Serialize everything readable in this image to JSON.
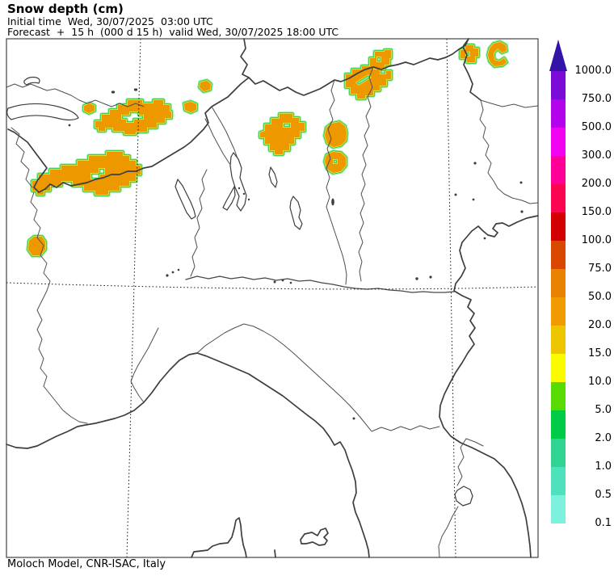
{
  "header": {
    "title": "Snow depth (cm)",
    "initial_time_line": "Initial time  Wed, 30/07/2025  03:00 UTC",
    "forecast_line": "Forecast  +  15 h  (000 d 15 h)  valid Wed, 30/07/2025 18:00 UTC"
  },
  "footer": {
    "credit": "Moloch Model, CNR-ISAC, Italy"
  },
  "legend": {
    "unit": "cm",
    "boundary_labels": [
      "1000.0",
      "750.0",
      "500.0",
      "300.0",
      "200.0",
      "150.0",
      "100.0",
      "75.0",
      "50.0",
      "20.0",
      "15.0",
      "10.0",
      "5.0",
      "2.0",
      "1.0",
      "0.5",
      "0.1"
    ],
    "segment_colors": [
      "#7C0BD8",
      "#B303EC",
      "#F203F2",
      "#FE0097",
      "#FB0551",
      "#D20000",
      "#D94700",
      "#E88200",
      "#F09C00",
      "#EDC600",
      "#FBFB00",
      "#58DB02",
      "#00CB47",
      "#2FD492",
      "#4FE0BC",
      "#7DF0DE"
    ],
    "arrow_color": "#3313A8"
  },
  "map": {
    "snow_fill": "#EE9800",
    "contour_ring_outer": "#8DEBA8",
    "contour_ring_mid": "#2FC437",
    "contour_ring_inner": "#F0E43C",
    "border_color": "#3D3D3D",
    "frame_color": "#444444",
    "graticule_color": "#111111"
  },
  "chart_data": {
    "type": "heatmap",
    "title": "Snow depth (cm)",
    "units": "cm",
    "levels": [
      0.1,
      0.5,
      1,
      2,
      5,
      10,
      15,
      20,
      50,
      75,
      100,
      150,
      200,
      300,
      500,
      750,
      1000
    ],
    "legend_position": "right",
    "depicted": "Filled snow-depth contours over the Alps of NW Italy/Switzerland and the central-eastern Alps; patch cores reach the 20-50 cm class (orange) with thin 0.1-20 cm fringes (cyan/green/yellow rings); rest of the domain snow-free"
  }
}
